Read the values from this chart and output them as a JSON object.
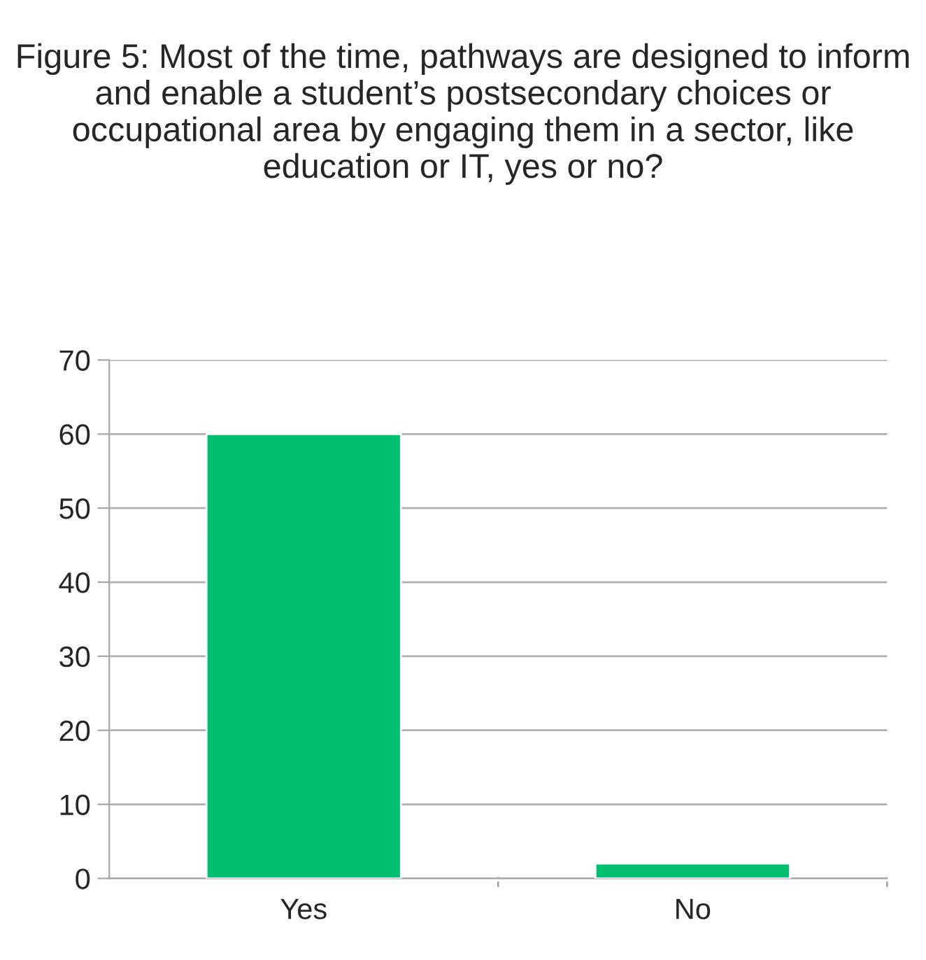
{
  "chart_data": {
    "type": "bar",
    "title": "Figure 5: Most of the time, pathways are designed to inform and enable a student’s postsecondary choices or occupational area by engaging them in a sector, like education or IT, yes or no?",
    "categories": [
      "Yes",
      "No"
    ],
    "values": [
      60,
      2
    ],
    "color": "#00c070",
    "ylim": [
      0,
      70
    ],
    "yticks": [
      0,
      10,
      20,
      30,
      40,
      50,
      60,
      70
    ],
    "grid": "y"
  }
}
